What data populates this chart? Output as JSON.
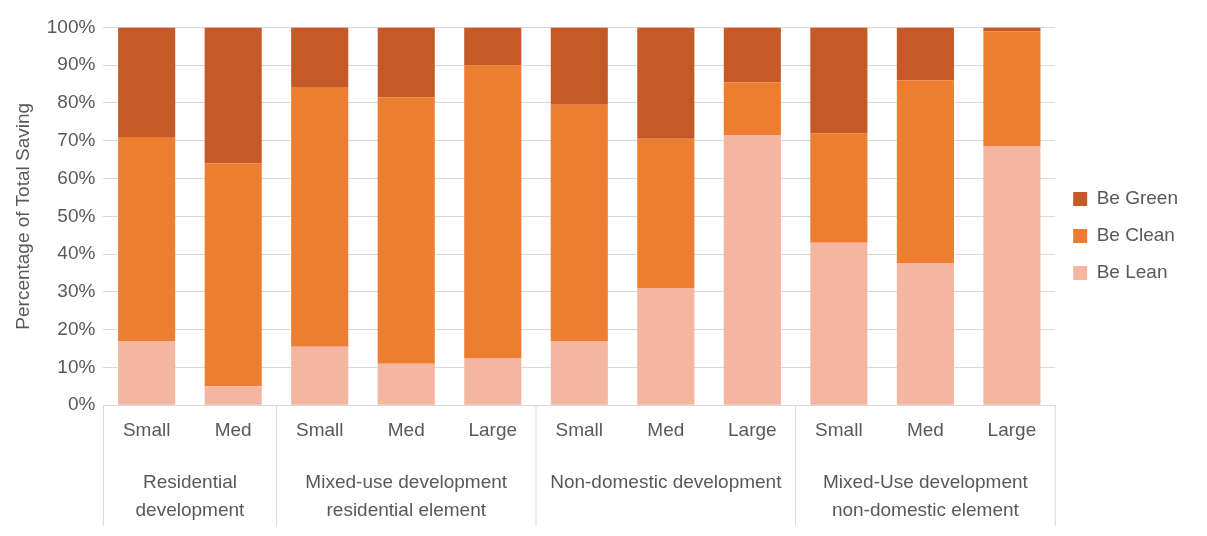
{
  "chart_data": {
    "type": "bar",
    "stacked": true,
    "ylabel": "Percentage of Total Saving",
    "categories": [
      "Small",
      "Med",
      "Small",
      "Med",
      "Large",
      "Small",
      "Med",
      "Large",
      "Small",
      "Med",
      "Large"
    ],
    "annotations": [
      "Residential development",
      "Mixed-use development residential element",
      "Non-domestic development",
      "Mixed-Use development non-domestic element"
    ],
    "series": [
      {
        "name": "Be Lean",
        "color": "#f4b6a0",
        "values": [
          17,
          5,
          15.5,
          11,
          12.5,
          17,
          31,
          71.5,
          43,
          37.5,
          68.5
        ]
      },
      {
        "name": "Be Clean",
        "color": "#ed7d31",
        "values": [
          54,
          59,
          68.5,
          70.5,
          77.5,
          62.5,
          39.5,
          14,
          29,
          48.5,
          30.5
        ]
      },
      {
        "name": "Be Green",
        "color": "#c55a28",
        "values": [
          29,
          36,
          16,
          18.5,
          10,
          20.5,
          29.5,
          14.5,
          28,
          14,
          1
        ]
      }
    ],
    "ylim": [
      0,
      100
    ],
    "yticks": [
      {
        "value": 0,
        "label": "0%"
      },
      {
        "value": 10,
        "label": "10%"
      },
      {
        "value": 20,
        "label": "20%"
      },
      {
        "value": 30,
        "label": "30%"
      },
      {
        "value": 40,
        "label": "40%"
      },
      {
        "value": 50,
        "label": "50%"
      },
      {
        "value": 60,
        "label": "60%"
      },
      {
        "value": 70,
        "label": "70%"
      },
      {
        "value": 80,
        "label": "80%"
      },
      {
        "value": 90,
        "label": "90%"
      },
      {
        "value": 100,
        "label": "100%"
      }
    ],
    "grid": "y",
    "legend": "right"
  }
}
